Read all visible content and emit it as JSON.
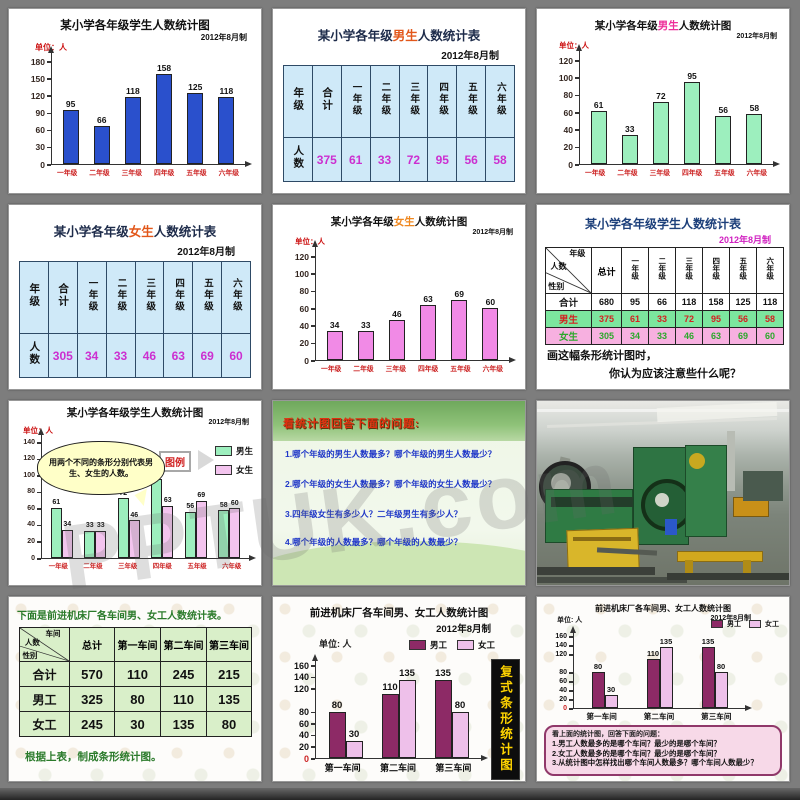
{
  "watermark": "PPTUK.com",
  "slides": [
    {
      "title": "某小学各年级学生人数统计图",
      "date": "2012年8月制",
      "unit": "单位：人",
      "chart": {
        "type": "bar",
        "yticks": [
          180,
          150,
          120,
          90,
          60,
          30,
          0
        ],
        "ymax": 180,
        "categories": [
          "一年级",
          "二年级",
          "三年级",
          "四年级",
          "五年级",
          "六年级"
        ],
        "values": [
          95,
          66,
          118,
          158,
          125,
          118
        ],
        "bar_color": "#2a50cc",
        "category_color": "#cc2222"
      }
    },
    {
      "title_prefix": "某小学各年级",
      "title_highlight": "男生",
      "highlight_color": "#e2571a",
      "title_suffix": "人数统计表",
      "date": "2012年8月制",
      "table": {
        "headers": [
          "年级",
          "合计",
          "一年级",
          "二年级",
          "三年级",
          "四年级",
          "五年级",
          "六年级"
        ],
        "row_label": "人数",
        "values": [
          375,
          61,
          33,
          72,
          95,
          56,
          58
        ],
        "cell_bg": "#cfe9f8",
        "value_color": "#cc2fd0"
      }
    },
    {
      "title_prefix": "某小学各年级",
      "title_highlight": "男生",
      "highlight_color": "#ee2e9a",
      "title_suffix": "人数统计图",
      "date": "2012年8月制",
      "unit": "单位：人",
      "chart": {
        "type": "bar",
        "yticks": [
          120,
          100,
          80,
          60,
          40,
          20,
          0
        ],
        "ymax": 120,
        "categories": [
          "一年级",
          "二年级",
          "三年级",
          "四年级",
          "五年级",
          "六年级"
        ],
        "values": [
          61,
          33,
          72,
          95,
          56,
          58
        ],
        "bar_color": "#9defbe",
        "category_color": "#cc2222"
      }
    },
    {
      "title_prefix": "某小学各年级",
      "title_highlight": "女生",
      "highlight_color": "#e2571a",
      "title_suffix": "人数统计表",
      "date": "2012年8月制",
      "table": {
        "headers": [
          "年级",
          "合计",
          "一年级",
          "二年级",
          "三年级",
          "四年级",
          "五年级",
          "六年级"
        ],
        "row_label": "人数",
        "values": [
          305,
          34,
          33,
          46,
          63,
          69,
          60
        ],
        "cell_bg": "#cfe9f8",
        "value_color": "#cc2fd0"
      }
    },
    {
      "title_prefix": "某小学各年级",
      "title_highlight": "女生",
      "highlight_color": "#ef8820",
      "title_suffix": "人数统计图",
      "date": "2012年8月制",
      "unit": "单位：人",
      "chart": {
        "type": "bar",
        "yticks": [
          120,
          100,
          80,
          60,
          40,
          20,
          0
        ],
        "ymax": 120,
        "categories": [
          "一年级",
          "二年级",
          "三年级",
          "四年级",
          "五年级",
          "六年级"
        ],
        "values": [
          34,
          33,
          46,
          63,
          69,
          60
        ],
        "bar_color": "#f18ae6",
        "category_color": "#cc2222"
      }
    },
    {
      "title": "某小学各年级学生人数统计表",
      "date": "2012年8月制",
      "table": {
        "diag": [
          "人数",
          "年级",
          "性别"
        ],
        "col_headers": [
          "总计",
          "一年级",
          "二年级",
          "三年级",
          "四年级",
          "五年级",
          "六年级"
        ],
        "rows": [
          {
            "label": "合计",
            "values": [
              680,
              95,
              66,
              118,
              158,
              125,
              118
            ],
            "bg": "#ffffff",
            "color": "#111111"
          },
          {
            "label": "男生",
            "values": [
              375,
              61,
              33,
              72,
              95,
              56,
              58
            ],
            "bg": "#7ce69e",
            "color": "#d42020"
          },
          {
            "label": "女生",
            "values": [
              305,
              34,
              33,
              46,
              63,
              69,
              60
            ],
            "bg": "#f7b0e0",
            "color": "#2ba82b"
          }
        ]
      },
      "note1": "画这幅条形统计图时，",
      "note2": "你认为应该注意些什么呢？"
    },
    {
      "title": "某小学各年级学生人数统计图",
      "date": "2012年8月制",
      "unit": "单位：人",
      "bubble": "用两个不同的条形分别代表男生、女生的人数。",
      "legend_label": "图例",
      "chart": {
        "type": "grouped-bar",
        "yticks": [
          140,
          120,
          100,
          80,
          60,
          40,
          20,
          0
        ],
        "ymax": 140,
        "categories": [
          "一年级",
          "二年级",
          "三年级",
          "四年级",
          "五年级",
          "六年级"
        ],
        "series": [
          {
            "name": "男生",
            "color": "#9defbe",
            "values": [
              61,
              33,
              72,
              95,
              56,
              58
            ]
          },
          {
            "name": "女生",
            "color": "#f3c4ee",
            "values": [
              34,
              33,
              46,
              63,
              69,
              60
            ]
          }
        ],
        "category_color": "#cc2222"
      }
    },
    {
      "title": "看统计图回答下面的问题:",
      "questions": [
        "1.哪个年级的男生人数最多？哪个年级的男生人数最少？",
        "2.哪个年级的女生人数最多？哪个年级的女生人数最少？",
        "3.四年级女生有多少人？二年级男生有多少人？",
        "4.哪个年级的人数最多？哪个年级的人数最少？"
      ]
    },
    {
      "label": "机床车间照片"
    },
    {
      "intro": "下面是前进机床厂各车间男、女工人数统计表。",
      "table": {
        "diag": [
          "人数",
          "车间",
          "性别"
        ],
        "col_headers": [
          "总计",
          "第一车间",
          "第二车间",
          "第三车间"
        ],
        "rows": [
          {
            "label": "合计",
            "values": [
              570,
              110,
              245,
              215
            ],
            "bg": "#d9efc9",
            "color": "#111111"
          },
          {
            "label": "男工",
            "values": [
              325,
              80,
              110,
              135
            ],
            "bg": "#d9efc9",
            "color": "#111111"
          },
          {
            "label": "女工",
            "values": [
              245,
              30,
              135,
              80
            ],
            "bg": "#d9efc9",
            "color": "#111111"
          }
        ]
      },
      "footer": "根据上表，制成条形统计图。"
    },
    {
      "title": "前进机床厂各车间男、女工人数统计图",
      "date": "2012年8月制",
      "unit": "单位: 人",
      "banner": "复式条形统计图",
      "chart": {
        "type": "grouped-bar",
        "yticks": [
          160,
          140,
          120,
          80,
          60,
          40,
          20,
          0
        ],
        "ymax": 160,
        "categories": [
          "第一车间",
          "第二车间",
          "第三车间"
        ],
        "series": [
          {
            "name": "男工",
            "color": "#8d2a66",
            "values": [
              80,
              110,
              135
            ]
          },
          {
            "name": "女工",
            "color": "#eec0ea",
            "values": [
              30,
              135,
              80
            ]
          }
        ],
        "category_color": "#111111"
      }
    },
    {
      "title": "前进机床厂各车间男、女工人数统计图",
      "date": "2012年8月制",
      "unit": "单位: 人",
      "chart": {
        "type": "grouped-bar",
        "yticks": [
          160,
          140,
          120,
          80,
          60,
          40,
          20,
          0
        ],
        "ymax": 160,
        "categories": [
          "第一车间",
          "第二车间",
          "第三车间"
        ],
        "series": [
          {
            "name": "男工",
            "color": "#8d2a66",
            "values": [
              80,
              110,
              135
            ]
          },
          {
            "name": "女工",
            "color": "#eec0ea",
            "values": [
              30,
              135,
              80
            ]
          }
        ],
        "category_color": "#111111"
      },
      "box_intro": "看上面的统计图，回答下面的问题：",
      "box_questions": [
        "1.男工人数最多的是哪个车间？最少的是哪个车间？",
        "2.女工人数最多的是哪个车间？最少的是哪个车间？",
        "3.从统计图中怎样找出哪个车间人数最多？哪个车间人数最少？"
      ]
    }
  ]
}
